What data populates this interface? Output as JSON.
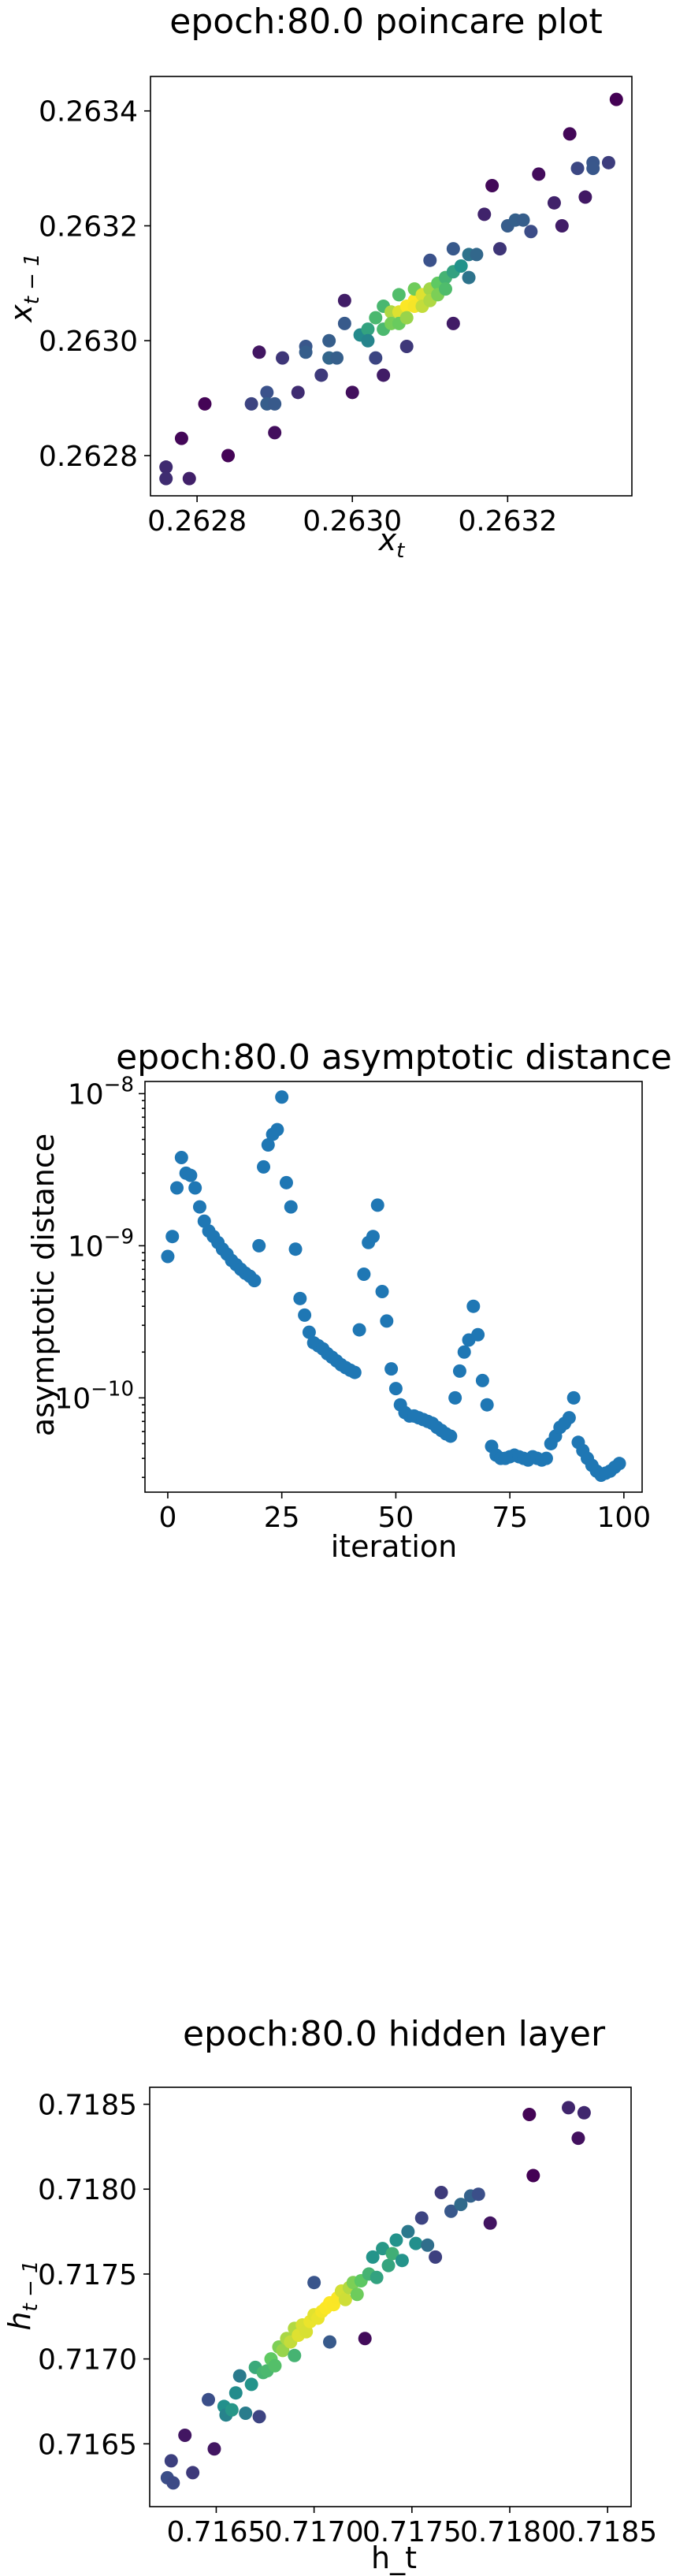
{
  "chart_data": [
    {
      "type": "scatter",
      "title": "epoch:80.0 poincare plot",
      "xlabel": "x_t",
      "ylabel": "x_{t-1}",
      "xlim": [
        0.26274,
        0.26336
      ],
      "ylim": [
        0.26273,
        0.26346
      ],
      "xticks": [
        0.2628,
        0.263,
        0.2632
      ],
      "xtick_labels": [
        "0.2628",
        "0.2630",
        "0.2632"
      ],
      "yticks": [
        0.2628,
        0.263,
        0.2632,
        0.2634
      ],
      "ytick_labels": [
        "0.2628",
        "0.2630",
        "0.2632",
        "0.2634"
      ],
      "colormap": "viridis (point density)",
      "grid": false,
      "points": [
        [
          0.26276,
          0.26278
        ],
        [
          0.26276,
          0.26276
        ],
        [
          0.26278,
          0.26283
        ],
        [
          0.26279,
          0.26276
        ],
        [
          0.26281,
          0.26289
        ],
        [
          0.26284,
          0.2628
        ],
        [
          0.26287,
          0.26289
        ],
        [
          0.26288,
          0.26298
        ],
        [
          0.26289,
          0.26291
        ],
        [
          0.26289,
          0.26289
        ],
        [
          0.2629,
          0.26289
        ],
        [
          0.2629,
          0.26284
        ],
        [
          0.26291,
          0.26297
        ],
        [
          0.26293,
          0.26291
        ],
        [
          0.26294,
          0.26299
        ],
        [
          0.26294,
          0.26298
        ],
        [
          0.26296,
          0.26294
        ],
        [
          0.26297,
          0.263
        ],
        [
          0.26297,
          0.26297
        ],
        [
          0.26298,
          0.26297
        ],
        [
          0.26299,
          0.26307
        ],
        [
          0.26299,
          0.26303
        ],
        [
          0.263,
          0.26291
        ],
        [
          0.26301,
          0.26301
        ],
        [
          0.26302,
          0.26302
        ],
        [
          0.26302,
          0.263
        ],
        [
          0.26303,
          0.26304
        ],
        [
          0.26303,
          0.26297
        ],
        [
          0.26304,
          0.26306
        ],
        [
          0.26304,
          0.26302
        ],
        [
          0.26304,
          0.26294
        ],
        [
          0.26305,
          0.26305
        ],
        [
          0.26305,
          0.26303
        ],
        [
          0.26306,
          0.26308
        ],
        [
          0.26306,
          0.26305
        ],
        [
          0.26306,
          0.26303
        ],
        [
          0.26307,
          0.26306
        ],
        [
          0.26307,
          0.26304
        ],
        [
          0.26307,
          0.26299
        ],
        [
          0.26308,
          0.26307
        ],
        [
          0.26308,
          0.26306
        ],
        [
          0.26308,
          0.26309
        ],
        [
          0.26309,
          0.26308
        ],
        [
          0.26309,
          0.26306
        ],
        [
          0.2631,
          0.26309
        ],
        [
          0.2631,
          0.26307
        ],
        [
          0.2631,
          0.26314
        ],
        [
          0.26311,
          0.2631
        ],
        [
          0.26311,
          0.26308
        ],
        [
          0.26312,
          0.26311
        ],
        [
          0.26312,
          0.26309
        ],
        [
          0.26313,
          0.26312
        ],
        [
          0.26313,
          0.26316
        ],
        [
          0.26313,
          0.26303
        ],
        [
          0.26314,
          0.26313
        ],
        [
          0.26315,
          0.26315
        ],
        [
          0.26315,
          0.26311
        ],
        [
          0.26316,
          0.26315
        ],
        [
          0.26317,
          0.26322
        ],
        [
          0.26318,
          0.26327
        ],
        [
          0.26319,
          0.26316
        ],
        [
          0.2632,
          0.2632
        ],
        [
          0.26321,
          0.26321
        ],
        [
          0.26322,
          0.26321
        ],
        [
          0.26323,
          0.26319
        ],
        [
          0.26324,
          0.26329
        ],
        [
          0.26326,
          0.26324
        ],
        [
          0.26327,
          0.2632
        ],
        [
          0.26328,
          0.26336
        ],
        [
          0.26329,
          0.2633
        ],
        [
          0.2633,
          0.26325
        ],
        [
          0.26331,
          0.26331
        ],
        [
          0.26331,
          0.2633
        ],
        [
          0.26333,
          0.26331
        ],
        [
          0.26334,
          0.26342
        ]
      ]
    },
    {
      "type": "scatter",
      "title": "epoch:80.0 asymptotic distance",
      "xlabel": "iteration",
      "ylabel": "asymptotic distance",
      "yscale": "log",
      "xlim": [
        -5,
        104
      ],
      "ylim_exp": [
        -10.62,
        -7.92
      ],
      "xticks": [
        0,
        25,
        50,
        75,
        100
      ],
      "xtick_labels": [
        "0",
        "25",
        "50",
        "75",
        "100"
      ],
      "yticks": [
        -10,
        -9,
        -8
      ],
      "ytick_labels": [
        "10^-10",
        "10^-9",
        "10^-8"
      ],
      "grid": false,
      "series": [
        {
          "color": "#1f77b4",
          "x": [
            0,
            1,
            2,
            3,
            4,
            5,
            6,
            7,
            8,
            9,
            10,
            11,
            12,
            13,
            14,
            15,
            16,
            17,
            18,
            19,
            20,
            21,
            22,
            23,
            24,
            25,
            26,
            27,
            28,
            29,
            30,
            31,
            32,
            33,
            34,
            35,
            36,
            37,
            38,
            39,
            40,
            41,
            42,
            43,
            44,
            45,
            46,
            47,
            48,
            49,
            50,
            51,
            52,
            53,
            54,
            55,
            56,
            57,
            58,
            59,
            60,
            61,
            62,
            63,
            64,
            65,
            66,
            67,
            68,
            69,
            70,
            71,
            72,
            73,
            74,
            75,
            76,
            77,
            78,
            79,
            80,
            81,
            82,
            83,
            84,
            85,
            86,
            87,
            88,
            89,
            90,
            91,
            92,
            93,
            94,
            95,
            96,
            97,
            98,
            99
          ],
          "y": [
            8.5e-10,
            1.15e-09,
            2.4e-09,
            3.8e-09,
            3e-09,
            2.9e-09,
            2.4e-09,
            1.8e-09,
            1.45e-09,
            1.25e-09,
            1.15e-09,
            1.05e-09,
            9.5e-10,
            8.8e-10,
            8e-10,
            7.5e-10,
            7e-10,
            6.6e-10,
            6.3e-10,
            5.9e-10,
            1e-09,
            3.3e-09,
            4.6e-09,
            5.4e-09,
            5.8e-09,
            9.5e-09,
            2.6e-09,
            1.8e-09,
            9.5e-10,
            4.5e-10,
            3.5e-10,
            2.7e-10,
            2.3e-10,
            2.2e-10,
            2.1e-10,
            1.95e-10,
            1.85e-10,
            1.75e-10,
            1.65e-10,
            1.58e-10,
            1.52e-10,
            1.47e-10,
            2.8e-10,
            6.5e-10,
            1.05e-09,
            1.15e-09,
            1.85e-09,
            5e-10,
            3.2e-10,
            1.55e-10,
            1.15e-10,
            9e-11,
            8e-11,
            7.6e-11,
            7.6e-11,
            7.4e-11,
            7.2e-11,
            7e-11,
            6.8e-11,
            6.4e-11,
            6.1e-11,
            5.8e-11,
            5.6e-11,
            1e-10,
            1.5e-10,
            2e-10,
            2.4e-10,
            4e-10,
            2.6e-10,
            1.3e-10,
            9e-11,
            4.8e-11,
            4.2e-11,
            4e-11,
            4e-11,
            4.1e-11,
            4.2e-11,
            4.1e-11,
            4e-11,
            3.9e-11,
            4.1e-11,
            4e-11,
            3.9e-11,
            4e-11,
            5e-11,
            5.6e-11,
            6.4e-11,
            6.8e-11,
            7.4e-11,
            1e-10,
            5.1e-11,
            4.5e-11,
            4e-11,
            3.6e-11,
            3.3e-11,
            3.1e-11,
            3.2e-11,
            3.3e-11,
            3.5e-11,
            3.7e-11
          ]
        }
      ]
    },
    {
      "type": "scatter",
      "title": "epoch:80.0 hidden layer",
      "xlabel": "h_t",
      "ylabel": "h_{t-1}",
      "xlim": [
        0.71616,
        0.71862
      ],
      "ylim": [
        0.71613,
        0.7186
      ],
      "xticks": [
        0.7165,
        0.717,
        0.7175,
        0.718,
        0.7185
      ],
      "xtick_labels": [
        "0.7165",
        "0.7170",
        "0.7175",
        "0.7180",
        "0.7185"
      ],
      "yticks": [
        0.7165,
        0.717,
        0.7175,
        0.718,
        0.7185
      ],
      "ytick_labels": [
        "0.7165",
        "0.7170",
        "0.7175",
        "0.7180",
        "0.7185"
      ],
      "colormap": "viridis (point density)",
      "grid": false,
      "points": [
        [
          0.71625,
          0.7163
        ],
        [
          0.71627,
          0.7164
        ],
        [
          0.71628,
          0.71627
        ],
        [
          0.71634,
          0.71655
        ],
        [
          0.71638,
          0.71633
        ],
        [
          0.71646,
          0.71676
        ],
        [
          0.71649,
          0.71647
        ],
        [
          0.71654,
          0.71672
        ],
        [
          0.71655,
          0.71667
        ],
        [
          0.71658,
          0.7167
        ],
        [
          0.7166,
          0.7168
        ],
        [
          0.71662,
          0.7169
        ],
        [
          0.71665,
          0.71668
        ],
        [
          0.71668,
          0.71685
        ],
        [
          0.7167,
          0.71695
        ],
        [
          0.71672,
          0.71666
        ],
        [
          0.71674,
          0.71692
        ],
        [
          0.71676,
          0.71693
        ],
        [
          0.71678,
          0.717
        ],
        [
          0.7168,
          0.71696
        ],
        [
          0.71682,
          0.71707
        ],
        [
          0.71684,
          0.71705
        ],
        [
          0.71686,
          0.71712
        ],
        [
          0.71688,
          0.7171
        ],
        [
          0.7169,
          0.71718
        ],
        [
          0.7169,
          0.71702
        ],
        [
          0.71692,
          0.71714
        ],
        [
          0.71694,
          0.7172
        ],
        [
          0.71696,
          0.71716
        ],
        [
          0.71698,
          0.71722
        ],
        [
          0.717,
          0.71726
        ],
        [
          0.717,
          0.71745
        ],
        [
          0.71702,
          0.71724
        ],
        [
          0.71704,
          0.71728
        ],
        [
          0.71706,
          0.7173
        ],
        [
          0.71708,
          0.71733
        ],
        [
          0.71708,
          0.7171
        ],
        [
          0.7171,
          0.71732
        ],
        [
          0.71712,
          0.71736
        ],
        [
          0.71714,
          0.7174
        ],
        [
          0.71716,
          0.71735
        ],
        [
          0.71718,
          0.71742
        ],
        [
          0.7172,
          0.71745
        ],
        [
          0.71722,
          0.71738
        ],
        [
          0.71724,
          0.71746
        ],
        [
          0.71726,
          0.71712
        ],
        [
          0.71728,
          0.7175
        ],
        [
          0.7173,
          0.7176
        ],
        [
          0.71732,
          0.71748
        ],
        [
          0.71735,
          0.71765
        ],
        [
          0.71738,
          0.71755
        ],
        [
          0.7174,
          0.71762
        ],
        [
          0.71742,
          0.7177
        ],
        [
          0.71745,
          0.71758
        ],
        [
          0.71748,
          0.71775
        ],
        [
          0.71752,
          0.71768
        ],
        [
          0.71755,
          0.71783
        ],
        [
          0.71758,
          0.71767
        ],
        [
          0.71762,
          0.7176
        ],
        [
          0.71765,
          0.71798
        ],
        [
          0.7177,
          0.71787
        ],
        [
          0.71775,
          0.71791
        ],
        [
          0.7178,
          0.71796
        ],
        [
          0.71784,
          0.71797
        ],
        [
          0.7179,
          0.7178
        ],
        [
          0.7181,
          0.71844
        ],
        [
          0.71812,
          0.71808
        ],
        [
          0.7183,
          0.71848
        ],
        [
          0.71835,
          0.7183
        ],
        [
          0.71838,
          0.71845
        ]
      ]
    }
  ]
}
